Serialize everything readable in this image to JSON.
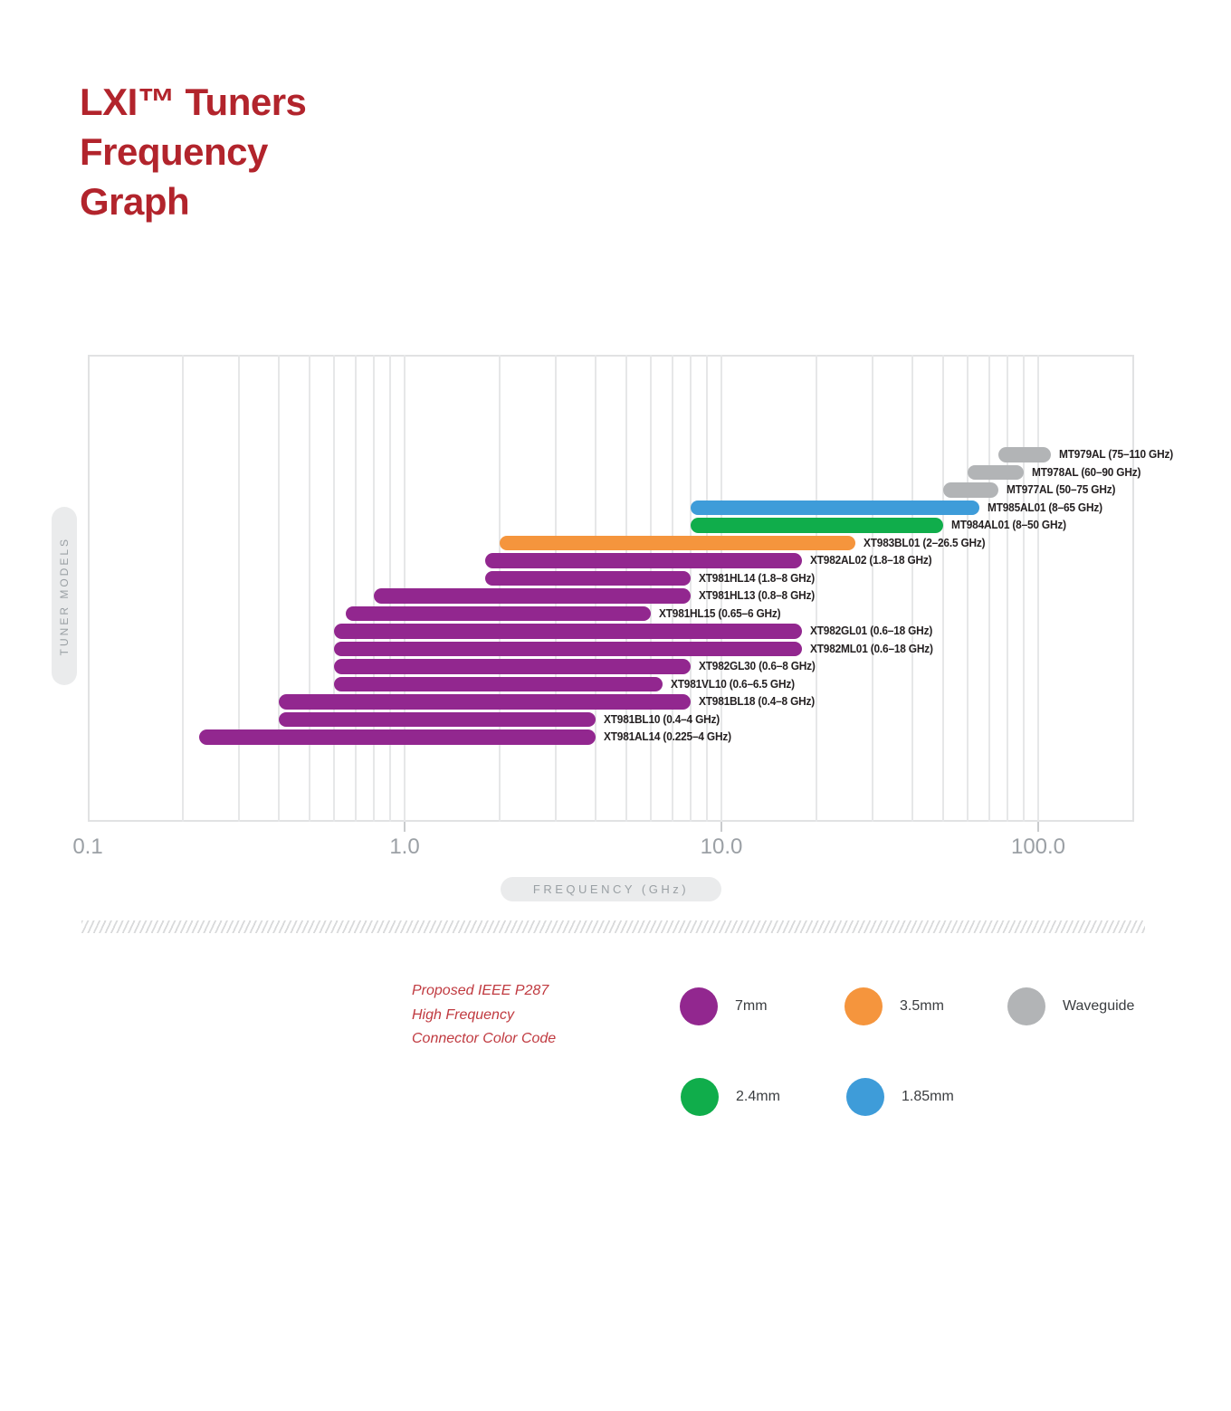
{
  "title": {
    "lines": [
      "LXI™ Tuners",
      "Frequency",
      "Graph"
    ]
  },
  "colors": {
    "title_red": "#b2242c",
    "legend_caption_red": "#c03a40",
    "connectors": {
      "7mm": "#92278f",
      "3.5mm": "#f5953d",
      "Waveguide": "#b2b4b6",
      "2.4mm": "#10ad4b",
      "1.85mm": "#3e9cd9"
    }
  },
  "chart_data": {
    "type": "bar",
    "subtype": "horizontal-range",
    "title": "LXI™ Tuners Frequency Graph",
    "xlabel": "FREQUENCY (GHz)",
    "ylabel": "TUNER MODELS",
    "xscale": "log",
    "xlim": [
      0.1,
      200
    ],
    "xticks": [
      0.1,
      1,
      10,
      100
    ],
    "xtick_labels": [
      "0.1",
      "1.0",
      "10.0",
      "100.0"
    ],
    "grid": "vertical log gridlines (minor 2-9 each decade, major at decades), no horizontal gridlines",
    "legend_position": "below chart",
    "bars": [
      {
        "model": "MT979AL",
        "connector": "Waveguide",
        "range_ghz": [
          75,
          110
        ],
        "label": "MT979AL (75–110 GHz)"
      },
      {
        "model": "MT978AL",
        "connector": "Waveguide",
        "range_ghz": [
          60,
          90
        ],
        "label": "MT978AL (60–90 GHz)"
      },
      {
        "model": "MT977AL",
        "connector": "Waveguide",
        "range_ghz": [
          50,
          75
        ],
        "label": "MT977AL (50–75 GHz)"
      },
      {
        "model": "MT985AL01",
        "connector": "1.85mm",
        "range_ghz": [
          8,
          65
        ],
        "label": "MT985AL01 (8–65 GHz)"
      },
      {
        "model": "MT984AL01",
        "connector": "2.4mm",
        "range_ghz": [
          8,
          50
        ],
        "label": "MT984AL01 (8–50 GHz)"
      },
      {
        "model": "XT983BL01",
        "connector": "3.5mm",
        "range_ghz": [
          2,
          26.5
        ],
        "label": "XT983BL01 (2–26.5 GHz)"
      },
      {
        "model": "XT982AL02",
        "connector": "7mm",
        "range_ghz": [
          1.8,
          18
        ],
        "label": "XT982AL02 (1.8–18 GHz)"
      },
      {
        "model": "XT981HL14",
        "connector": "7mm",
        "range_ghz": [
          1.8,
          8
        ],
        "label": "XT981HL14 (1.8–8 GHz)"
      },
      {
        "model": "XT981HL13",
        "connector": "7mm",
        "range_ghz": [
          0.8,
          8
        ],
        "label": "XT981HL13 (0.8–8 GHz)"
      },
      {
        "model": "XT981HL15",
        "connector": "7mm",
        "range_ghz": [
          0.65,
          6
        ],
        "label": "XT981HL15 (0.65–6 GHz)"
      },
      {
        "model": "XT982GL01",
        "connector": "7mm",
        "range_ghz": [
          0.6,
          18
        ],
        "label": "XT982GL01 (0.6–18 GHz)"
      },
      {
        "model": "XT982ML01",
        "connector": "7mm",
        "range_ghz": [
          0.6,
          18
        ],
        "label": "XT982ML01 (0.6–18 GHz)"
      },
      {
        "model": "XT982GL30",
        "connector": "7mm",
        "range_ghz": [
          0.6,
          8
        ],
        "label": "XT982GL30 (0.6–8 GHz)"
      },
      {
        "model": "XT981VL10",
        "connector": "7mm",
        "range_ghz": [
          0.6,
          6.5
        ],
        "label": "XT981VL10 (0.6–6.5 GHz)"
      },
      {
        "model": "XT981BL18",
        "connector": "7mm",
        "range_ghz": [
          0.4,
          8
        ],
        "label": "XT981BL18 (0.4–8 GHz)"
      },
      {
        "model": "XT981BL10",
        "connector": "7mm",
        "range_ghz": [
          0.4,
          4
        ],
        "label": "XT981BL10 (0.4–4 GHz)"
      },
      {
        "model": "XT981AL14",
        "connector": "7mm",
        "range_ghz": [
          0.225,
          4
        ],
        "label": "XT981AL14 (0.225–4 GHz)"
      }
    ]
  },
  "legend": {
    "caption_lines": [
      "Proposed IEEE P287",
      "High Frequency",
      "Connector Color Code"
    ],
    "items": [
      {
        "label": "7mm",
        "color": "#92278f"
      },
      {
        "label": "3.5mm",
        "color": "#f5953d"
      },
      {
        "label": "Waveguide",
        "color": "#b2b4b6"
      },
      {
        "label": "2.4mm",
        "color": "#10ad4b"
      },
      {
        "label": "1.85mm",
        "color": "#3e9cd9"
      }
    ]
  }
}
